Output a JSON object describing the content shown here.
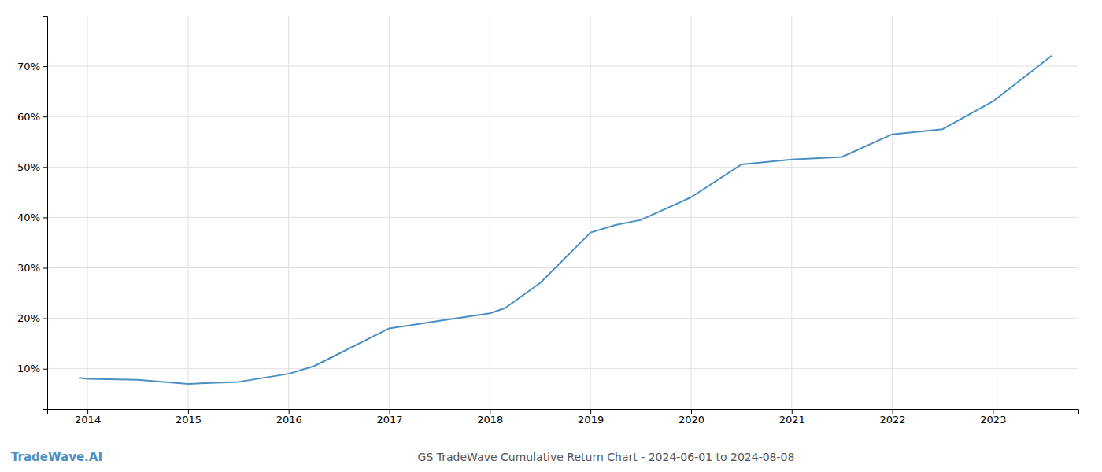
{
  "chart_data": {
    "type": "line",
    "title": "GS TradeWave Cumulative Return Chart - 2024-06-01 to 2024-08-08",
    "annotations": [
      "TradeWave.AI"
    ],
    "color": "#4a90c4",
    "x": [
      2013.92,
      2014.0,
      2014.5,
      2015.0,
      2015.5,
      2016.0,
      2016.25,
      2016.5,
      2017.0,
      2017.5,
      2018.0,
      2018.15,
      2018.5,
      2019.0,
      2019.25,
      2019.5,
      2020.0,
      2020.5,
      2021.0,
      2021.5,
      2022.0,
      2022.25,
      2022.5,
      2023.0,
      2023.58
    ],
    "values": [
      8.2,
      8.0,
      7.8,
      7.0,
      7.4,
      9.0,
      10.5,
      13.0,
      18.0,
      19.5,
      21.0,
      22.0,
      27.0,
      37.0,
      38.5,
      39.5,
      44.0,
      50.5,
      51.5,
      52.0,
      56.5,
      57.0,
      57.5,
      63.0,
      72.0
    ],
    "xlim": [
      2013.6,
      2023.85
    ],
    "ylim": [
      2,
      80
    ],
    "xticks": [
      2014,
      2015,
      2016,
      2017,
      2018,
      2019,
      2020,
      2021,
      2022,
      2023
    ],
    "yticks": [
      {
        "value": 10,
        "label": "10%"
      },
      {
        "value": 20,
        "label": "20%"
      },
      {
        "value": 30,
        "label": "30%"
      },
      {
        "value": 40,
        "label": "40%"
      },
      {
        "value": 50,
        "label": "50%"
      },
      {
        "value": 60,
        "label": "60%"
      },
      {
        "value": 70,
        "label": "70%"
      }
    ],
    "grid": true
  }
}
